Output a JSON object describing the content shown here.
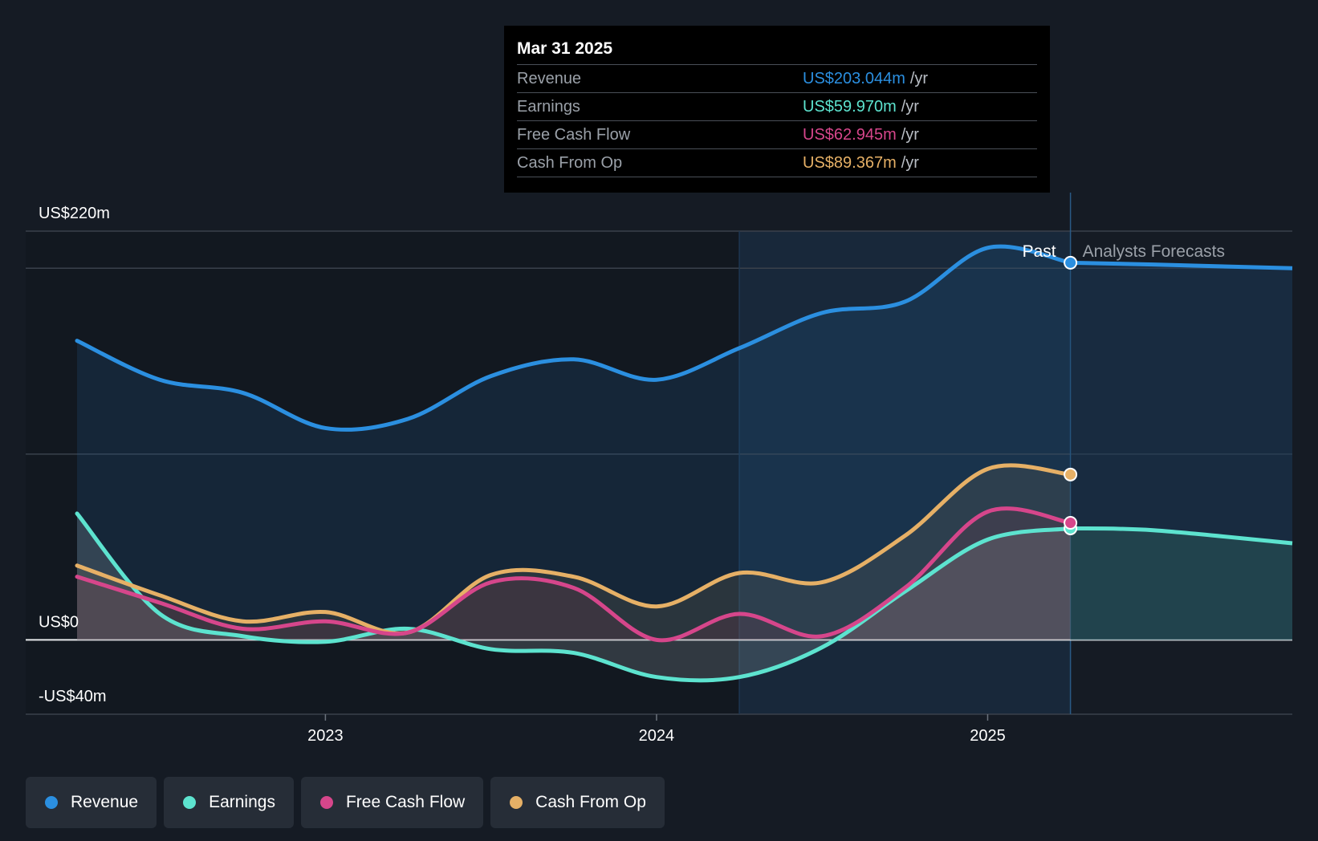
{
  "chart_data": {
    "type": "line",
    "title": "",
    "x_ticks": [
      "2023",
      "2024",
      "2025"
    ],
    "y_labels": [
      "US$220m",
      "US$0",
      "-US$40m"
    ],
    "ylim": [
      -40,
      220
    ],
    "time_range": [
      2022.25,
      2025.92
    ],
    "past_cutoff": 2025.25,
    "shaded_highlight_start": 2024.25,
    "period_labels": {
      "past": "Past",
      "forecast": "Analysts Forecasts"
    },
    "series": [
      {
        "name": "Revenue",
        "color": "#2b8fe0",
        "points": [
          [
            2022.25,
            161
          ],
          [
            2022.5,
            140
          ],
          [
            2022.75,
            133
          ],
          [
            2023.0,
            114
          ],
          [
            2023.25,
            119
          ],
          [
            2023.5,
            142
          ],
          [
            2023.75,
            151
          ],
          [
            2024.0,
            140
          ],
          [
            2024.25,
            157
          ],
          [
            2024.5,
            176
          ],
          [
            2024.75,
            182
          ],
          [
            2025.0,
            211
          ],
          [
            2025.25,
            203
          ]
        ],
        "forecast": [
          [
            2025.25,
            203
          ],
          [
            2025.5,
            202
          ],
          [
            2025.92,
            200
          ]
        ]
      },
      {
        "name": "Earnings",
        "color": "#5de3cf",
        "points": [
          [
            2022.25,
            68
          ],
          [
            2022.5,
            14
          ],
          [
            2022.75,
            2
          ],
          [
            2023.0,
            -1
          ],
          [
            2023.25,
            6
          ],
          [
            2023.5,
            -5
          ],
          [
            2023.75,
            -7
          ],
          [
            2024.0,
            -20
          ],
          [
            2024.25,
            -20
          ],
          [
            2024.5,
            -4
          ],
          [
            2024.75,
            26
          ],
          [
            2025.0,
            54
          ],
          [
            2025.25,
            60
          ]
        ],
        "forecast": [
          [
            2025.25,
            60
          ],
          [
            2025.5,
            59
          ],
          [
            2025.92,
            52
          ]
        ]
      },
      {
        "name": "Free Cash Flow",
        "color": "#d6468b",
        "points": [
          [
            2022.25,
            34
          ],
          [
            2022.5,
            20
          ],
          [
            2022.75,
            6
          ],
          [
            2023.0,
            10
          ],
          [
            2023.25,
            4
          ],
          [
            2023.5,
            31
          ],
          [
            2023.75,
            28
          ],
          [
            2024.0,
            0
          ],
          [
            2024.25,
            14
          ],
          [
            2024.5,
            2
          ],
          [
            2024.75,
            28
          ],
          [
            2025.0,
            69
          ],
          [
            2025.25,
            63
          ]
        ],
        "forecast": []
      },
      {
        "name": "Cash From Op",
        "color": "#e6b066",
        "points": [
          [
            2022.25,
            40
          ],
          [
            2022.5,
            24
          ],
          [
            2022.75,
            10
          ],
          [
            2023.0,
            15
          ],
          [
            2023.25,
            4
          ],
          [
            2023.5,
            35
          ],
          [
            2023.75,
            34
          ],
          [
            2024.0,
            18
          ],
          [
            2024.25,
            36
          ],
          [
            2024.5,
            31
          ],
          [
            2024.75,
            56
          ],
          [
            2025.0,
            92
          ],
          [
            2025.25,
            89
          ]
        ],
        "forecast": []
      }
    ]
  },
  "tooltip": {
    "date": "Mar 31 2025",
    "rows": [
      {
        "label": "Revenue",
        "value": "US$203.044m",
        "unit": "/yr",
        "color": "#2b8fe0"
      },
      {
        "label": "Earnings",
        "value": "US$59.970m",
        "unit": "/yr",
        "color": "#5de3cf"
      },
      {
        "label": "Free Cash Flow",
        "value": "US$62.945m",
        "unit": "/yr",
        "color": "#d6468b"
      },
      {
        "label": "Cash From Op",
        "value": "US$89.367m",
        "unit": "/yr",
        "color": "#e6b066"
      }
    ]
  },
  "legend": [
    {
      "label": "Revenue",
      "color": "#2b8fe0"
    },
    {
      "label": "Earnings",
      "color": "#5de3cf"
    },
    {
      "label": "Free Cash Flow",
      "color": "#d6468b"
    },
    {
      "label": "Cash From Op",
      "color": "#e6b066"
    }
  ]
}
